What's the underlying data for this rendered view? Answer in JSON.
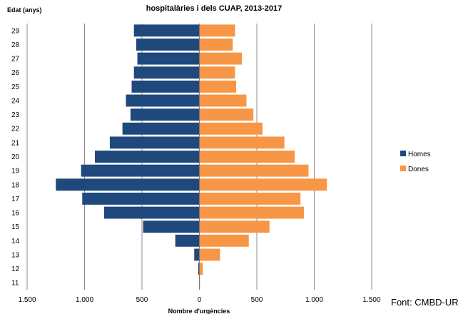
{
  "chart_data": {
    "type": "bar",
    "title": "hospitalàries i dels CUAP, 2013-2017",
    "ylabel": "Edat (anys)",
    "xlabel": "Nombre d'urgències",
    "xlim": [
      -1500,
      1500
    ],
    "x_ticks": [
      -1500,
      -1000,
      -500,
      0,
      500,
      1000,
      1500
    ],
    "x_tick_labels": [
      "1.500",
      "1.000",
      "500",
      "0",
      "500",
      "1.000",
      "1.500"
    ],
    "categories": [
      "29",
      "28",
      "27",
      "26",
      "25",
      "24",
      "23",
      "22",
      "21",
      "20",
      "19",
      "18",
      "17",
      "16",
      "15",
      "14",
      "13",
      "12",
      "11"
    ],
    "series": [
      {
        "name": "Homes",
        "color": "#1f497d",
        "values": [
          570,
          550,
          540,
          570,
          590,
          640,
          600,
          670,
          780,
          910,
          1030,
          1250,
          1020,
          830,
          490,
          210,
          45,
          10,
          3
        ]
      },
      {
        "name": "Dones",
        "color": "#f79646",
        "values": [
          310,
          290,
          370,
          310,
          320,
          410,
          470,
          550,
          740,
          830,
          950,
          1110,
          880,
          910,
          610,
          430,
          180,
          30,
          5
        ]
      }
    ],
    "grid": true,
    "legend_position": "right"
  },
  "source_note": "Font: CMBD-UR"
}
